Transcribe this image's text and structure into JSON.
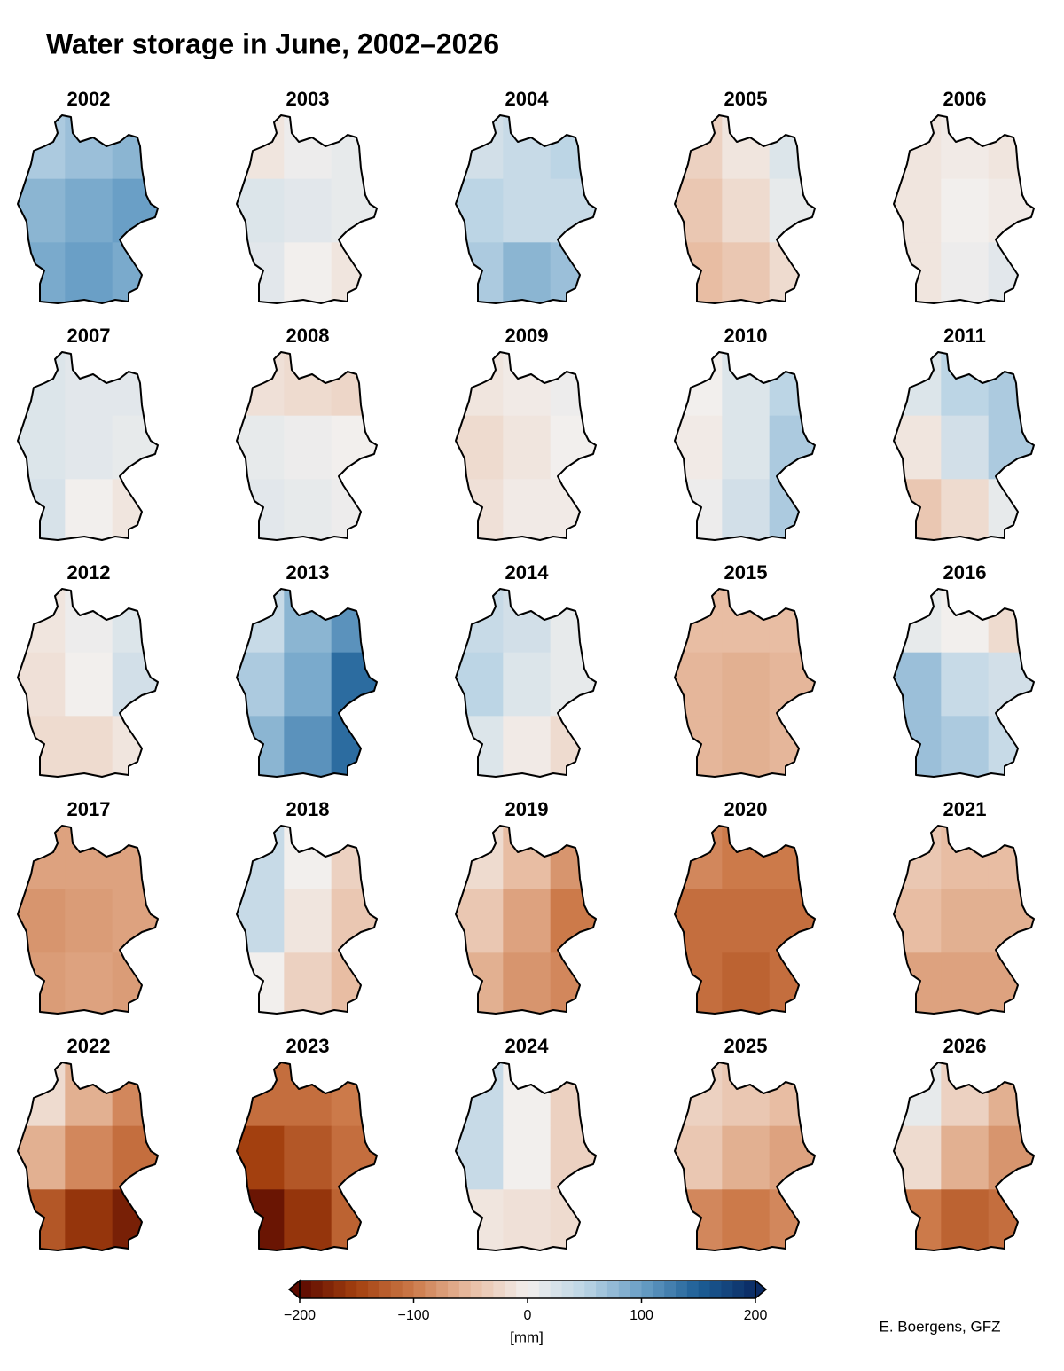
{
  "title": "Water storage in June, 2002–2026",
  "credit": "E. Boergens, GFZ",
  "chart_data": {
    "type": "map-grid",
    "clim": [
      -200,
      200
    ],
    "ticks": [
      {
        "value": -200,
        "label": "−200"
      },
      {
        "value": -100,
        "label": "−100"
      },
      0,
      100,
      200
    ],
    "colorbar_label": "[mm]",
    "colors": [
      "#5c0a00",
      "#a3400f",
      "#cc7a4a",
      "#e8bda3",
      "#f2efed",
      "#bcd5e5",
      "#6a9fc6",
      "#1d5f96",
      "#0a2a63"
    ],
    "panels": [
      {
        "title": "2002",
        "values": [
          [
            60,
            70,
            80
          ],
          [
            80,
            90,
            100
          ],
          [
            90,
            100,
            90
          ]
        ]
      },
      {
        "title": "2003",
        "values": [
          [
            -10,
            5,
            10
          ],
          [
            20,
            15,
            10
          ],
          [
            15,
            0,
            -10
          ]
        ]
      },
      {
        "title": "2004",
        "values": [
          [
            30,
            40,
            50
          ],
          [
            50,
            40,
            40
          ],
          [
            60,
            80,
            70
          ]
        ]
      },
      {
        "title": "2005",
        "values": [
          [
            -30,
            -10,
            20
          ],
          [
            -40,
            -20,
            10
          ],
          [
            -50,
            -40,
            -20
          ]
        ]
      },
      {
        "title": "2006",
        "values": [
          [
            -10,
            -5,
            -10
          ],
          [
            -10,
            0,
            -5
          ],
          [
            -10,
            5,
            15
          ]
        ]
      },
      {
        "title": "2007",
        "values": [
          [
            20,
            15,
            15
          ],
          [
            20,
            15,
            10
          ],
          [
            25,
            0,
            -10
          ]
        ]
      },
      {
        "title": "2008",
        "values": [
          [
            -15,
            -20,
            -25
          ],
          [
            10,
            5,
            0
          ],
          [
            15,
            10,
            5
          ]
        ]
      },
      {
        "title": "2009",
        "values": [
          [
            -10,
            -5,
            5
          ],
          [
            -20,
            -10,
            0
          ],
          [
            -15,
            -5,
            -5
          ]
        ]
      },
      {
        "title": "2010",
        "values": [
          [
            0,
            20,
            50
          ],
          [
            -5,
            20,
            60
          ],
          [
            5,
            30,
            60
          ]
        ]
      },
      {
        "title": "2011",
        "values": [
          [
            20,
            50,
            60
          ],
          [
            -10,
            30,
            60
          ],
          [
            -40,
            -20,
            10
          ]
        ]
      },
      {
        "title": "2012",
        "values": [
          [
            -10,
            5,
            20
          ],
          [
            -15,
            0,
            30
          ],
          [
            -20,
            -20,
            -10
          ]
        ]
      },
      {
        "title": "2013",
        "values": [
          [
            40,
            80,
            110
          ],
          [
            60,
            90,
            140
          ],
          [
            80,
            110,
            140
          ]
        ]
      },
      {
        "title": "2014",
        "values": [
          [
            40,
            30,
            10
          ],
          [
            50,
            20,
            10
          ],
          [
            20,
            -5,
            -20
          ]
        ]
      },
      {
        "title": "2015",
        "values": [
          [
            -50,
            -50,
            -50
          ],
          [
            -55,
            -60,
            -55
          ],
          [
            -55,
            -60,
            -55
          ]
        ]
      },
      {
        "title": "2016",
        "values": [
          [
            10,
            0,
            -20
          ],
          [
            70,
            40,
            30
          ],
          [
            70,
            60,
            40
          ]
        ]
      },
      {
        "title": "2017",
        "values": [
          [
            -70,
            -70,
            -70
          ],
          [
            -80,
            -75,
            -70
          ],
          [
            -75,
            -70,
            -75
          ]
        ]
      },
      {
        "title": "2018",
        "values": [
          [
            40,
            0,
            -30
          ],
          [
            40,
            -10,
            -40
          ],
          [
            0,
            -30,
            -50
          ]
        ]
      },
      {
        "title": "2019",
        "values": [
          [
            -20,
            -50,
            -80
          ],
          [
            -40,
            -70,
            -100
          ],
          [
            -60,
            -80,
            -90
          ]
        ]
      },
      {
        "title": "2020",
        "values": [
          [
            -90,
            -100,
            -100
          ],
          [
            -110,
            -110,
            -110
          ],
          [
            -110,
            -120,
            -110
          ]
        ]
      },
      {
        "title": "2021",
        "values": [
          [
            -40,
            -50,
            -50
          ],
          [
            -50,
            -60,
            -60
          ],
          [
            -70,
            -70,
            -70
          ]
        ]
      },
      {
        "title": "2022",
        "values": [
          [
            -20,
            -60,
            -90
          ],
          [
            -60,
            -90,
            -110
          ],
          [
            -130,
            -160,
            -180
          ]
        ]
      },
      {
        "title": "2023",
        "values": [
          [
            -110,
            -110,
            -100
          ],
          [
            -150,
            -130,
            -110
          ],
          [
            -190,
            -160,
            -120
          ]
        ]
      },
      {
        "title": "2024",
        "values": [
          [
            40,
            0,
            -30
          ],
          [
            40,
            0,
            -30
          ],
          [
            -10,
            -15,
            -20
          ]
        ]
      },
      {
        "title": "2025",
        "values": [
          [
            -30,
            -40,
            -50
          ],
          [
            -40,
            -60,
            -70
          ],
          [
            -90,
            -100,
            -90
          ]
        ]
      },
      {
        "title": "2026",
        "values": [
          [
            10,
            -30,
            -60
          ],
          [
            -20,
            -60,
            -80
          ],
          [
            -100,
            -120,
            -110
          ]
        ]
      }
    ]
  }
}
